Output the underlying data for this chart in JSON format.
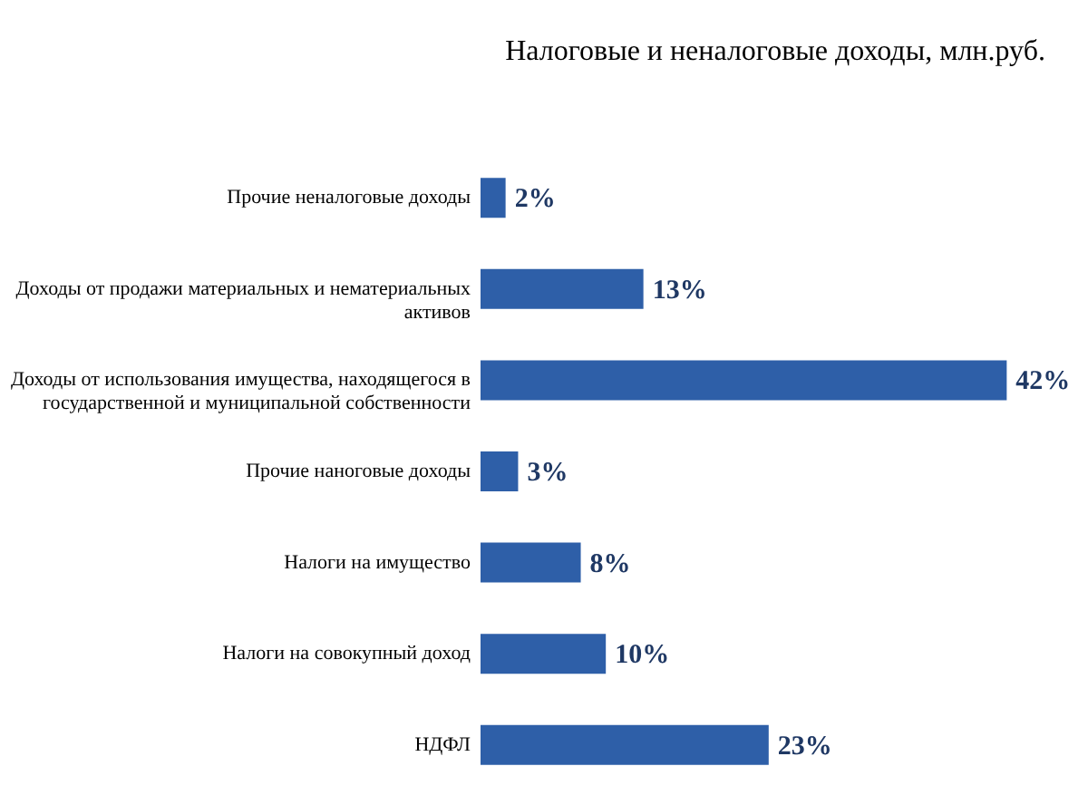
{
  "chart_data": {
    "type": "bar",
    "orientation": "horizontal",
    "title": "Налоговые и неналоговые доходы, млн.руб.",
    "categories": [
      "Прочие неналоговые доходы",
      "Доходы от продажи материальных и нематериальных активов",
      "Доходы от использования имущества, находящегося в государственной и муниципальной собственности",
      "Прочие наноговые доходы",
      "Налоги на имущество",
      "Налоги на совокупный доход",
      "НДФЛ"
    ],
    "values": [
      2,
      13,
      42,
      3,
      8,
      10,
      23
    ],
    "value_labels": [
      "2%",
      "13%",
      "42%",
      "3%",
      "8%",
      "10%",
      "23%"
    ],
    "tick_labels": "y",
    "color": "#2e5fa8"
  }
}
